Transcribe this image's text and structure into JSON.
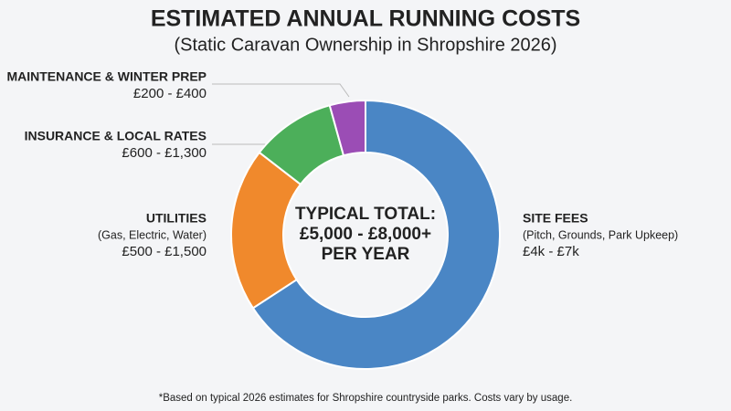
{
  "chart_data": {
    "type": "donut",
    "title": "ESTIMATED ANNUAL RUNNING COSTS",
    "subtitle": "(Static Caravan Ownership in Shropshire 2026)",
    "categories": [
      "SITE FEES",
      "UTILITIES",
      "INSURANCE & LOCAL RATES",
      "MAINTENANCE & WINTER PREP"
    ],
    "details": [
      "(Pitch, Grounds, Park Upkeep)",
      "(Gas, Electric, Water)",
      null,
      null
    ],
    "ranges": [
      "£4k - £7k",
      "£500 - £1,500",
      "£600 - £1,300",
      "£200 - £400"
    ],
    "values": [
      65.8,
      19.7,
      10.2,
      4.3
    ],
    "colors": [
      "#4a86c5",
      "#f0892c",
      "#4caf5a",
      "#9b4db5"
    ],
    "center_text": [
      "TYPICAL TOTAL:",
      "£5,000 - £8,000+",
      "PER YEAR"
    ],
    "footnote": "*Based on typical 2026 estimates for Shropshire countryside parks. Costs vary by usage."
  }
}
